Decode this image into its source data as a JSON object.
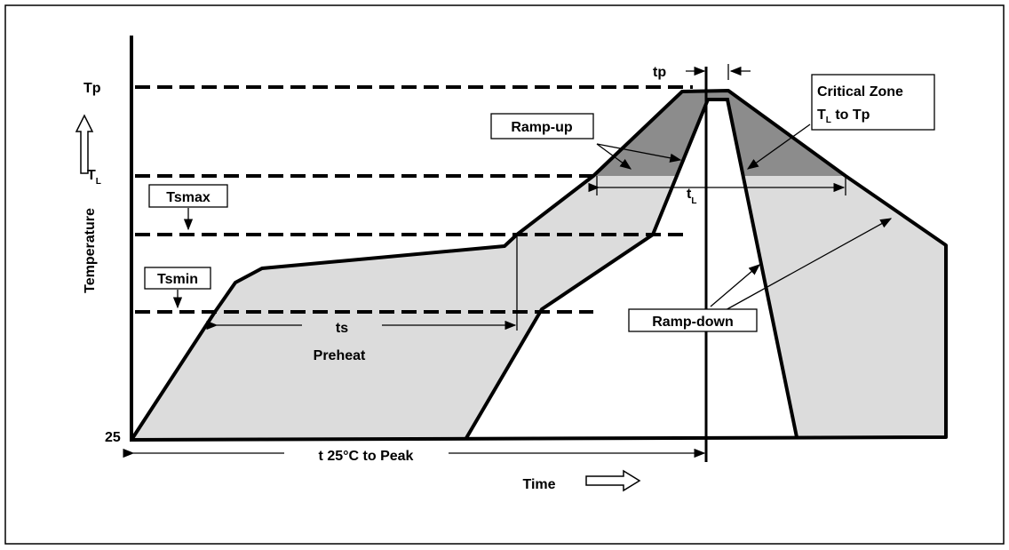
{
  "levels": {
    "tp": "Tp",
    "tl": {
      "main": "T",
      "sub": "L"
    },
    "tsmax": "Tsmax",
    "tsmin": "Tsmin",
    "base": "25"
  },
  "axes": {
    "y": "Temperature",
    "x": "Time"
  },
  "labels": {
    "tp": "tp",
    "ramp_up": "Ramp-up",
    "ramp_down": "Ramp-down",
    "critical": {
      "line1": "Critical Zone",
      "line2": {
        "main": "T",
        "sub": "L",
        "rest": " to Tp"
      }
    },
    "tl": {
      "main": "t",
      "sub": "L"
    },
    "ts": "ts",
    "preheat": "Preheat",
    "t25": "t 25°C to Peak"
  }
}
